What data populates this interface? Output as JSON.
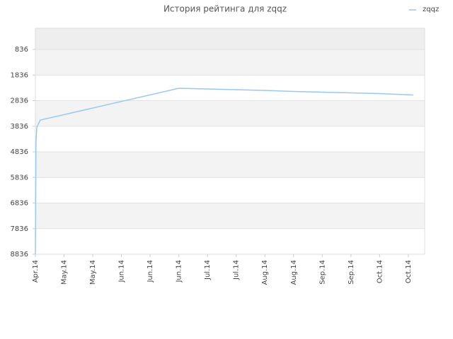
{
  "chart_data": {
    "type": "line",
    "title": "История рейтинга для zqqz",
    "series": [
      {
        "name": "zqqz",
        "color": "#99c9f0",
        "x": [
          0,
          0.02,
          0.05,
          0.17,
          5.0,
          6.0,
          7.0,
          8.0,
          9.0,
          10.0,
          11.0,
          12.0,
          13.17
        ],
        "values": [
          8836,
          4500,
          3870,
          3595,
          2353,
          2381,
          2408,
          2436,
          2477,
          2505,
          2532,
          2560,
          2615
        ]
      }
    ],
    "ylim": [
      8,
      8836
    ],
    "y_inverted": true,
    "yticks": [
      836,
      1836,
      2836,
      3836,
      4836,
      5836,
      6836,
      7836,
      8836
    ],
    "xlim": [
      0,
      13.57
    ],
    "xticks": [
      {
        "value": 0,
        "label": "Apr.14"
      },
      {
        "value": 1,
        "label": "May.14"
      },
      {
        "value": 2,
        "label": "May.14"
      },
      {
        "value": 3,
        "label": "Jun.14"
      },
      {
        "value": 4,
        "label": "Jun.14"
      },
      {
        "value": 5,
        "label": "Jun.14"
      },
      {
        "value": 6,
        "label": "Jul.14"
      },
      {
        "value": 7,
        "label": "Jul.14"
      },
      {
        "value": 8,
        "label": "Aug.14"
      },
      {
        "value": 9,
        "label": "Aug.14"
      },
      {
        "value": 10,
        "label": "Sep.14"
      },
      {
        "value": 11,
        "label": "Sep.14"
      },
      {
        "value": 12,
        "label": "Oct.14"
      },
      {
        "value": 13,
        "label": "Oct.14"
      }
    ],
    "grid": true,
    "legend": "top-right"
  }
}
